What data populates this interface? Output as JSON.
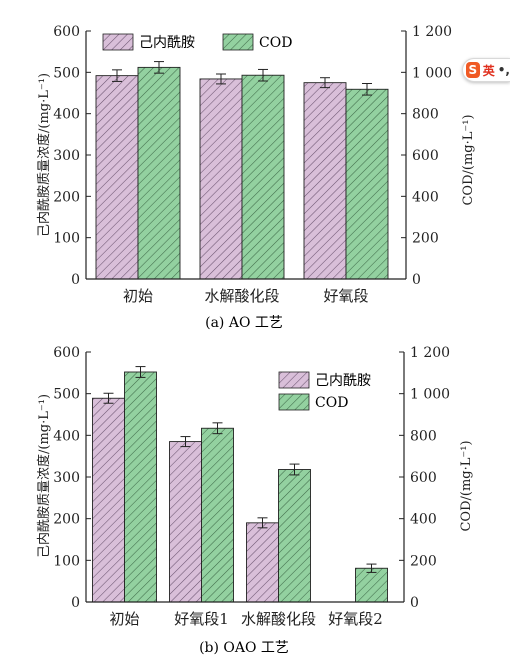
{
  "chart_data": [
    {
      "type": "bar",
      "caption": "(a) AO 工艺",
      "categories": [
        "初始",
        "水解酸化段",
        "好氧段"
      ],
      "ylabel": "己内酰胺质量浓度/(mg·L⁻¹)",
      "y2label": "COD/(mg·L⁻¹)",
      "ylim": [
        0,
        600
      ],
      "y2lim": [
        0,
        1200
      ],
      "yticks": [
        "0",
        "100",
        "200",
        "300",
        "400",
        "500",
        "600"
      ],
      "y2ticks": [
        "0",
        "200",
        "400",
        "600",
        "800",
        "1 000",
        "1 200"
      ],
      "legend_position": "top-left",
      "series": [
        {
          "name": "己内酰胺",
          "axis": "left",
          "color": "#d5b8d5",
          "values": [
            492,
            484,
            475
          ],
          "errors": [
            14,
            12,
            12
          ]
        },
        {
          "name": "COD",
          "axis": "right",
          "color": "#8fcf9c",
          "values": [
            1024,
            986,
            918
          ],
          "errors": [
            28,
            28,
            28
          ]
        }
      ]
    },
    {
      "type": "bar",
      "caption": "(b) OAO 工艺",
      "categories": [
        "初始",
        "好氧段1",
        "水解酸化段",
        "好氧段2"
      ],
      "ylabel": "己内酰胺质量浓度/(mg·L⁻¹)",
      "y2label": "COD/(mg·L⁻¹)",
      "ylim": [
        0,
        600
      ],
      "y2lim": [
        0,
        1200
      ],
      "yticks": [
        "0",
        "100",
        "200",
        "300",
        "400",
        "500",
        "600"
      ],
      "y2ticks": [
        "0",
        "200",
        "400",
        "600",
        "800",
        "1 000",
        "1 200"
      ],
      "legend_position": "top-right",
      "series": [
        {
          "name": "己内酰胺",
          "axis": "left",
          "color": "#d5b8d5",
          "values": [
            489,
            385,
            190,
            0
          ],
          "errors": [
            12,
            12,
            12,
            0
          ]
        },
        {
          "name": "COD",
          "axis": "right",
          "color": "#8fcf9c",
          "values": [
            1104,
            834,
            636,
            162
          ],
          "errors": [
            26,
            26,
            26,
            20
          ]
        }
      ]
    }
  ],
  "ime_toolbar": {
    "logo": "S",
    "mode": "英",
    "punct": "•,"
  }
}
